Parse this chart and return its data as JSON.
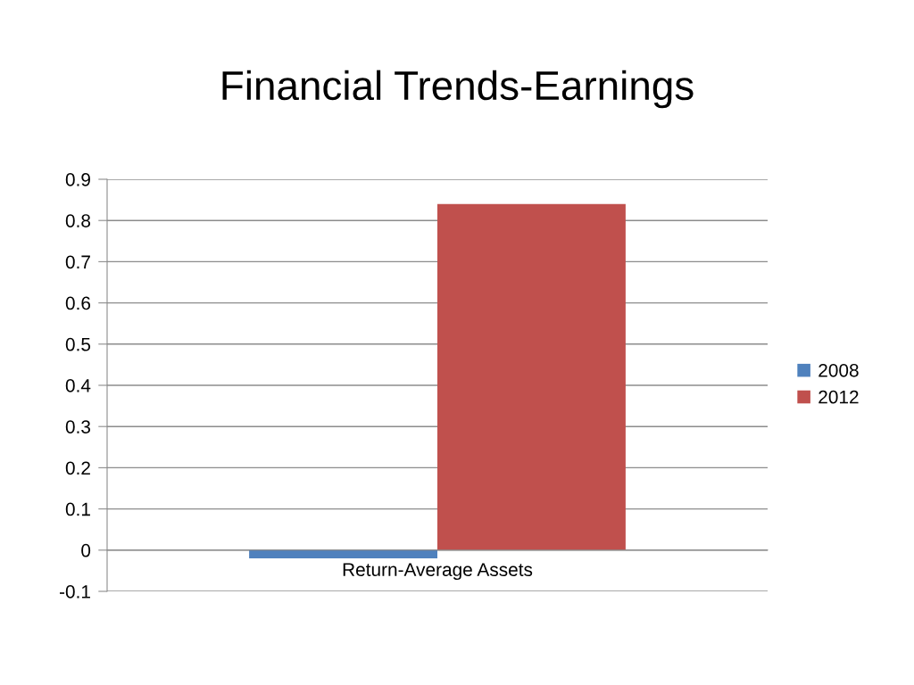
{
  "chart_data": {
    "type": "bar",
    "title": "Financial Trends-Earnings",
    "categories": [
      "Return-Average Assets"
    ],
    "series": [
      {
        "name": "2008",
        "color": "#4f81bd",
        "values": [
          -0.02
        ]
      },
      {
        "name": "2012",
        "color": "#c0504d",
        "values": [
          0.84
        ]
      }
    ],
    "ylim": [
      -0.1,
      0.9
    ],
    "yticks": [
      -0.1,
      0,
      0.1,
      0.2,
      0.3,
      0.4,
      0.5,
      0.6,
      0.7,
      0.8,
      0.9
    ],
    "grid": "y",
    "legend": "right"
  }
}
